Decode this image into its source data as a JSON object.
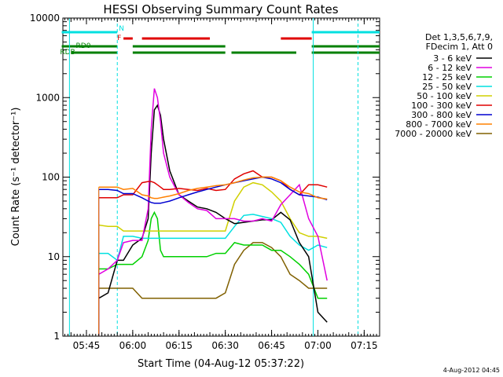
{
  "chart_data": {
    "type": "line",
    "title": "HESSI Observing Summary Count Rates",
    "xlabel": "Start Time (04-Aug-12 05:37:22)",
    "ylabel": "Count Rate (s⁻¹ detector⁻¹)",
    "yscale": "log",
    "ylim": [
      1,
      10000
    ],
    "xlim": [
      "05:37:22",
      "07:20:00"
    ],
    "x_tick_labels": [
      "05:45",
      "06:00",
      "06:15",
      "06:30",
      "06:45",
      "07:00",
      "07:15"
    ],
    "y_tick_labels": [
      "1",
      "10",
      "100",
      "1000",
      "10000"
    ],
    "grid": false,
    "legend_position": "right",
    "legend_header": [
      "Det 1,3,5,6,7,9,",
      "FDecim 1, Att 0"
    ],
    "footer_date": "4-Aug-2012 04:45",
    "time_markers": [
      "05:39:30",
      "05:55:00",
      "06:58:30",
      "07:13:00"
    ],
    "flags": [
      {
        "label": "N",
        "color": "#00e0e0",
        "intervals": [
          [
            "05:37",
            "05:55"
          ],
          [
            "06:58",
            "07:20"
          ]
        ]
      },
      {
        "label": "F",
        "color": "#e00000",
        "intervals": [
          [
            "05:57",
            "06:00"
          ],
          [
            "06:03",
            "06:25"
          ],
          [
            "06:48",
            "06:58"
          ]
        ]
      },
      {
        "label": "RD0",
        "color": "#008000",
        "intervals": [
          [
            "05:37",
            "05:55"
          ],
          [
            "06:00",
            "06:30"
          ],
          [
            "06:58",
            "07:20"
          ]
        ]
      },
      {
        "label": "RDB",
        "color": "#008000",
        "intervals": [
          [
            "05:40",
            "05:55"
          ],
          [
            "06:00",
            "06:30"
          ],
          [
            "06:32",
            "06:53"
          ],
          [
            "06:58",
            "07:20"
          ]
        ]
      }
    ],
    "x": [
      "05:49",
      "05:52",
      "05:55",
      "05:57",
      "06:00",
      "06:03",
      "06:05",
      "06:06",
      "06:07",
      "06:08",
      "06:09",
      "06:10",
      "06:12",
      "06:15",
      "06:18",
      "06:21",
      "06:24",
      "06:27",
      "06:30",
      "06:33",
      "06:36",
      "06:39",
      "06:42",
      "06:45",
      "06:48",
      "06:51",
      "06:54",
      "06:57",
      "07:00",
      "07:03"
    ],
    "series": [
      {
        "name": "3 - 6 keV",
        "color": "#000000",
        "values": [
          3,
          3.5,
          9,
          9,
          14,
          17,
          30,
          200,
          700,
          800,
          600,
          300,
          120,
          60,
          50,
          42,
          40,
          36,
          30,
          26,
          27,
          28,
          29,
          29,
          36,
          29,
          15,
          10,
          2,
          1.5
        ]
      },
      {
        "name": "6 - 12 keV",
        "color": "#e000e0",
        "values": [
          6,
          7,
          9,
          15,
          16,
          16,
          40,
          400,
          1300,
          1000,
          500,
          200,
          100,
          60,
          48,
          40,
          38,
          30,
          30,
          30,
          28,
          28,
          30,
          28,
          45,
          60,
          80,
          30,
          18,
          5
        ]
      },
      {
        "name": "12 - 25 keV",
        "color": "#00d000",
        "values": [
          7,
          7,
          8,
          8,
          8,
          10,
          16,
          30,
          36,
          30,
          12,
          10,
          10,
          10,
          10,
          10,
          10,
          11,
          11,
          15,
          14,
          14,
          14,
          12,
          12,
          10,
          8,
          6,
          3,
          3
        ]
      },
      {
        "name": "25 - 50 keV",
        "color": "#00e0e0",
        "values": [
          11,
          11,
          9,
          18,
          18,
          17,
          17,
          17,
          17,
          17,
          17,
          17,
          17,
          17,
          17,
          17,
          17,
          17,
          17,
          24,
          33,
          34,
          32,
          30,
          27,
          18,
          14,
          12,
          14,
          13
        ]
      },
      {
        "name": "50 - 100 keV",
        "color": "#d0d000",
        "values": [
          25,
          24,
          24,
          21,
          21,
          21,
          21,
          21,
          21,
          21,
          21,
          21,
          21,
          21,
          21,
          21,
          21,
          21,
          21,
          50,
          75,
          85,
          80,
          65,
          50,
          30,
          20,
          18,
          18,
          17
        ]
      },
      {
        "name": "100 - 300 keV",
        "color": "#e00000",
        "values": [
          55,
          55,
          55,
          60,
          60,
          85,
          88,
          88,
          85,
          80,
          75,
          70,
          70,
          72,
          70,
          68,
          72,
          68,
          70,
          95,
          110,
          120,
          100,
          100,
          90,
          70,
          60,
          80,
          80,
          75
        ]
      },
      {
        "name": "300 - 800 keV",
        "color": "#0000d0",
        "values": [
          70,
          70,
          68,
          62,
          62,
          55,
          50,
          48,
          47,
          47,
          47,
          48,
          50,
          55,
          60,
          65,
          70,
          75,
          80,
          85,
          90,
          95,
          100,
          95,
          85,
          70,
          60,
          58,
          56,
          52
        ]
      },
      {
        "name": "800 - 7000 keV",
        "color": "#ff8000",
        "values": [
          75,
          75,
          75,
          70,
          72,
          60,
          58,
          55,
          54,
          54,
          55,
          56,
          58,
          62,
          68,
          72,
          75,
          78,
          80,
          85,
          92,
          98,
          100,
          100,
          90,
          75,
          65,
          62,
          55,
          53
        ]
      },
      {
        "name": "7000 - 20000 keV",
        "color": "#806000",
        "values": [
          4,
          4,
          4,
          4,
          4,
          3,
          3,
          3,
          3,
          3,
          3,
          3,
          3,
          3,
          3,
          3,
          3,
          3,
          3.5,
          8,
          12,
          15,
          15,
          13,
          10,
          6,
          5,
          4,
          4,
          4
        ]
      }
    ]
  }
}
